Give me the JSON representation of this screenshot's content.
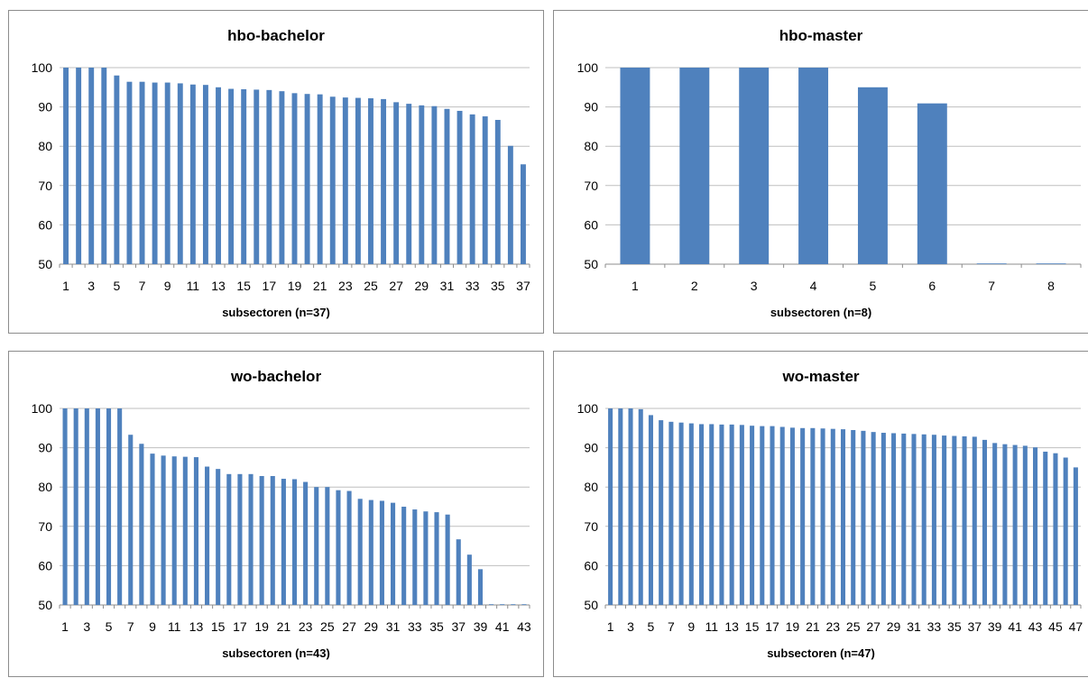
{
  "chart_data": [
    {
      "type": "bar",
      "title": "hbo-bachelor",
      "xlabel": "subsectoren (n=37)",
      "ylabel": "",
      "ylim": [
        50,
        100
      ],
      "yticks": [
        50,
        60,
        70,
        80,
        90,
        100
      ],
      "categories": [
        1,
        2,
        3,
        4,
        5,
        6,
        7,
        8,
        9,
        10,
        11,
        12,
        13,
        14,
        15,
        16,
        17,
        18,
        19,
        20,
        21,
        22,
        23,
        24,
        25,
        26,
        27,
        28,
        29,
        30,
        31,
        32,
        33,
        34,
        35,
        36,
        37
      ],
      "xtick_labels": [
        1,
        3,
        5,
        7,
        9,
        11,
        13,
        15,
        17,
        19,
        21,
        23,
        25,
        27,
        29,
        31,
        33,
        35,
        37
      ],
      "values": [
        100,
        100,
        100,
        100,
        98,
        96.4,
        96.4,
        96.2,
        96.2,
        96,
        95.7,
        95.6,
        95,
        94.6,
        94.5,
        94.4,
        94.3,
        94,
        93.5,
        93.3,
        93.2,
        92.6,
        92.4,
        92.3,
        92.2,
        92,
        91.2,
        90.8,
        90.4,
        90.2,
        89.5,
        89,
        88.1,
        87.6,
        86.7,
        80.1,
        75.4
      ],
      "grid": true,
      "color": "#4f81bd"
    },
    {
      "type": "bar",
      "title": "hbo-master",
      "xlabel": "subsectoren (n=8)",
      "ylabel": "",
      "ylim": [
        50,
        100
      ],
      "yticks": [
        50,
        60,
        70,
        80,
        90,
        100
      ],
      "categories": [
        1,
        2,
        3,
        4,
        5,
        6,
        7,
        8
      ],
      "xtick_labels": [
        1,
        2,
        3,
        4,
        5,
        6,
        7,
        8
      ],
      "values": [
        100,
        100,
        100,
        100,
        95,
        90.9,
        50,
        50
      ],
      "grid": true,
      "color": "#4f81bd"
    },
    {
      "type": "bar",
      "title": "wo-bachelor",
      "xlabel": "subsectoren (n=43)",
      "ylabel": "",
      "ylim": [
        50,
        100
      ],
      "yticks": [
        50,
        60,
        70,
        80,
        90,
        100
      ],
      "categories": [
        1,
        2,
        3,
        4,
        5,
        6,
        7,
        8,
        9,
        10,
        11,
        12,
        13,
        14,
        15,
        16,
        17,
        18,
        19,
        20,
        21,
        22,
        23,
        24,
        25,
        26,
        27,
        28,
        29,
        30,
        31,
        32,
        33,
        34,
        35,
        36,
        37,
        38,
        39,
        40,
        41,
        42,
        43
      ],
      "xtick_labels": [
        1,
        3,
        5,
        7,
        9,
        11,
        13,
        15,
        17,
        19,
        21,
        23,
        25,
        27,
        29,
        31,
        33,
        35,
        37,
        39,
        41,
        43
      ],
      "values": [
        100,
        100,
        100,
        100,
        100,
        100,
        93.3,
        91,
        88.5,
        88,
        87.8,
        87.7,
        87.6,
        85.2,
        84.6,
        83.3,
        83.3,
        83.3,
        82.8,
        82.8,
        82.1,
        82,
        81.3,
        80,
        80,
        79.2,
        79,
        77,
        76.7,
        76.5,
        76,
        75,
        74.3,
        73.8,
        73.6,
        73,
        66.7,
        62.8,
        59.1,
        50,
        50,
        50,
        50
      ],
      "grid": true,
      "color": "#4f81bd"
    },
    {
      "type": "bar",
      "title": "wo-master",
      "xlabel": "subsectoren (n=47)",
      "ylabel": "",
      "ylim": [
        50,
        100
      ],
      "yticks": [
        50,
        60,
        70,
        80,
        90,
        100
      ],
      "categories": [
        1,
        2,
        3,
        4,
        5,
        6,
        7,
        8,
        9,
        10,
        11,
        12,
        13,
        14,
        15,
        16,
        17,
        18,
        19,
        20,
        21,
        22,
        23,
        24,
        25,
        26,
        27,
        28,
        29,
        30,
        31,
        32,
        33,
        34,
        35,
        36,
        37,
        38,
        39,
        40,
        41,
        42,
        43,
        44,
        45,
        46,
        47
      ],
      "xtick_labels": [
        1,
        3,
        5,
        7,
        9,
        11,
        13,
        15,
        17,
        19,
        21,
        23,
        25,
        27,
        29,
        31,
        33,
        35,
        37,
        39,
        41,
        43,
        45,
        47
      ],
      "values": [
        100,
        100,
        100,
        99.8,
        98.3,
        97,
        96.6,
        96.4,
        96.2,
        96,
        96,
        95.9,
        95.9,
        95.8,
        95.6,
        95.5,
        95.5,
        95.3,
        95.1,
        95,
        95,
        94.9,
        94.8,
        94.7,
        94.5,
        94.3,
        94,
        93.8,
        93.7,
        93.6,
        93.5,
        93.4,
        93.3,
        93.1,
        93,
        92.9,
        92.8,
        92,
        91.2,
        90.9,
        90.7,
        90.5,
        90.1,
        89,
        88.6,
        87.5,
        85
      ],
      "grid": true,
      "color": "#4f81bd"
    }
  ]
}
